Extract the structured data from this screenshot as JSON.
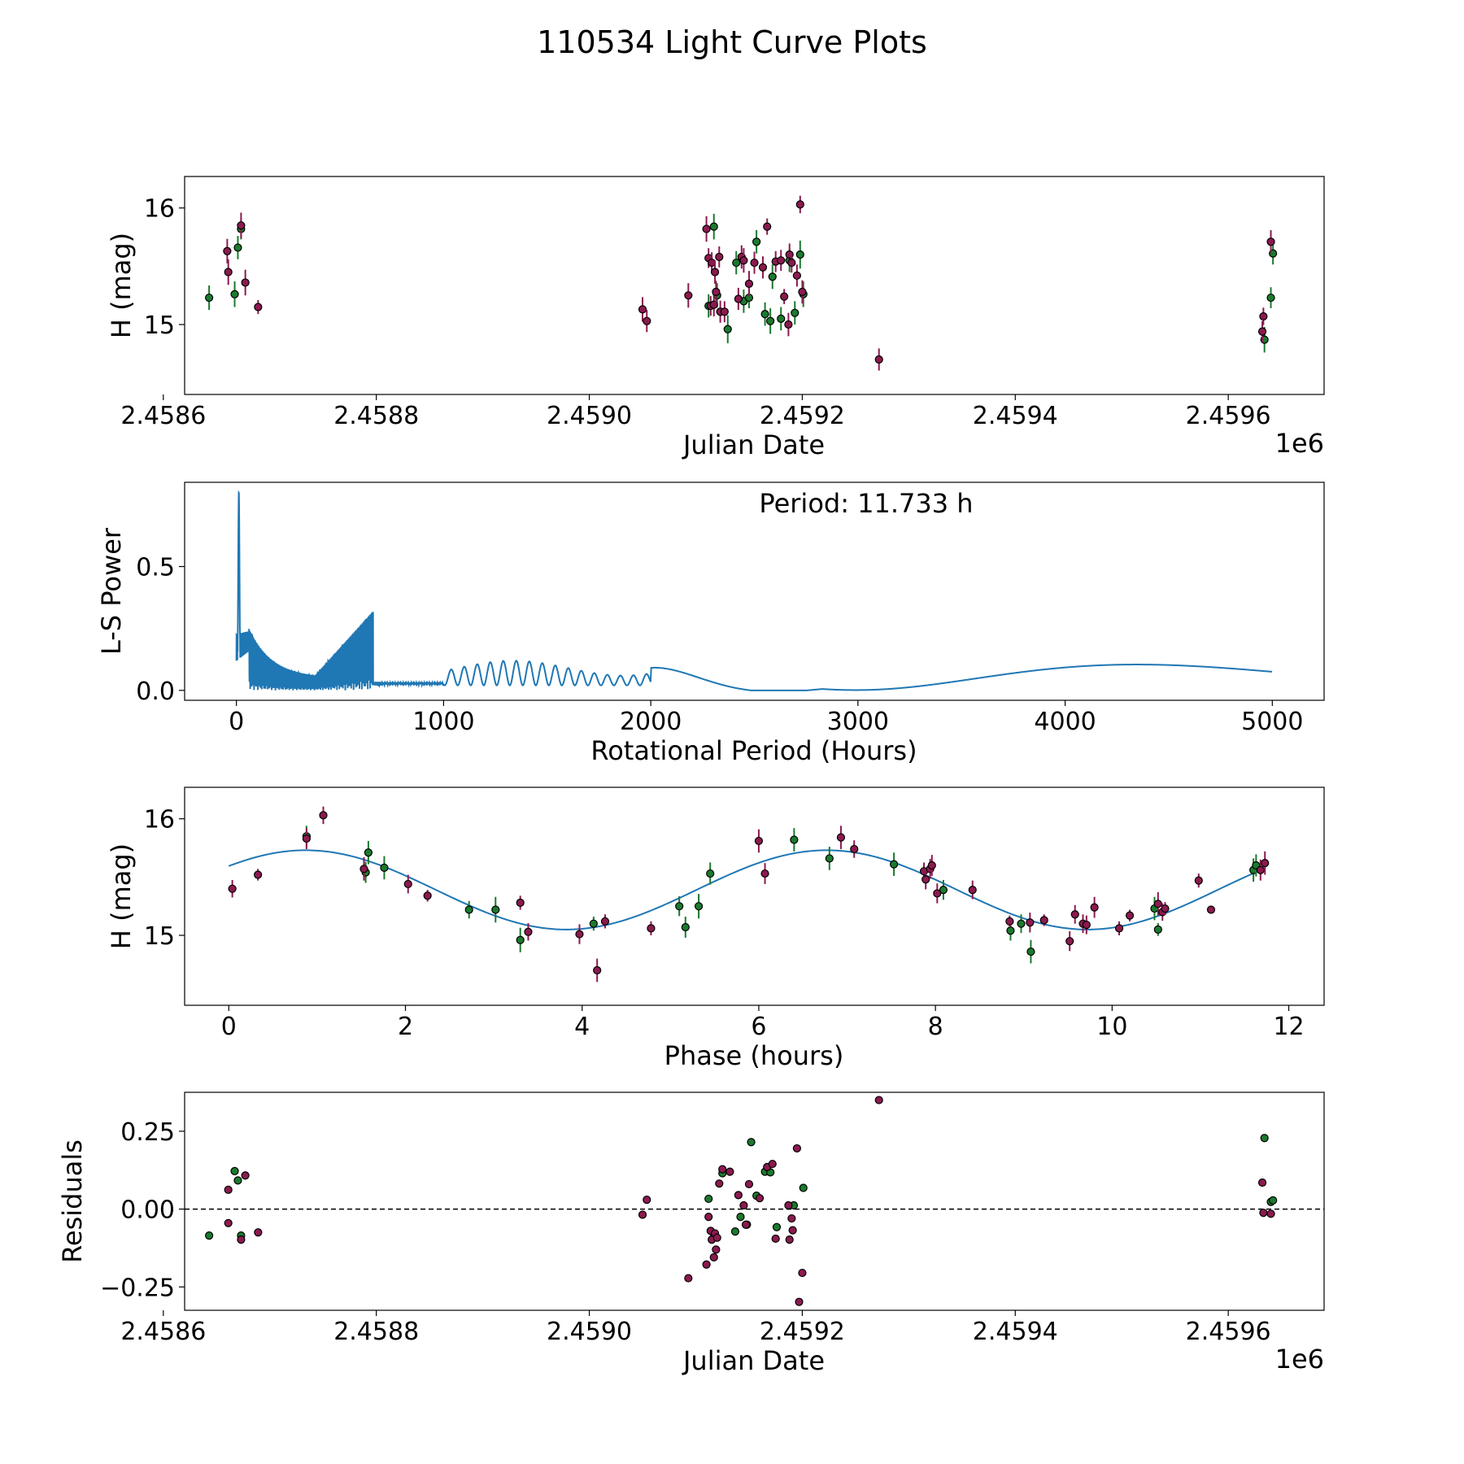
{
  "figure_title": "110534 Light Curve Plots",
  "colors": {
    "filter_g": "#1a7a2e",
    "filter_r": "#8b1a4f",
    "curve": "#1f77b4"
  },
  "chart_data": [
    {
      "type": "scatter",
      "name": "lightcurve-jd",
      "xlabel": "Julian Date",
      "ylabel": "H (mag)",
      "x_offset_label": "1e6",
      "xlim": [
        2.45862,
        2.45969
      ],
      "ylim": [
        14.4,
        16.27
      ],
      "xticks": [
        2.4586,
        2.4588,
        2.459,
        2.4592,
        2.4594,
        2.4596
      ],
      "xtick_labels": [
        "2.4586",
        "2.4588",
        "2.4590",
        "2.4592",
        "2.4594",
        "2.4596"
      ],
      "yticks": [
        15,
        16
      ],
      "ytick_labels": [
        "15",
        "16"
      ],
      "series": [
        {
          "name": "green",
          "color_key": "filter_g",
          "points": [
            [
              2.458643,
              15.23,
              0.21
            ],
            [
              2.458667,
              15.26,
              0.22
            ],
            [
              2.45867,
              15.66,
              0.2
            ],
            [
              2.458673,
              15.82,
              0.18
            ],
            [
              2.459112,
              15.16,
              0.2
            ],
            [
              2.459117,
              15.84,
              0.22
            ],
            [
              2.45912,
              15.25,
              0.21
            ],
            [
              2.45913,
              14.96,
              0.24
            ],
            [
              2.459138,
              15.53,
              0.2
            ],
            [
              2.459145,
              15.2,
              0.2
            ],
            [
              2.45915,
              15.23,
              0.18
            ],
            [
              2.459157,
              15.71,
              0.2
            ],
            [
              2.459165,
              15.09,
              0.2
            ],
            [
              2.45917,
              15.03,
              0.22
            ],
            [
              2.459172,
              15.41,
              0.21
            ],
            [
              2.45918,
              15.05,
              0.2
            ],
            [
              2.459188,
              15.55,
              0.2
            ],
            [
              2.459193,
              15.1,
              0.2
            ],
            [
              2.459198,
              15.6,
              0.24
            ],
            [
              2.459201,
              15.26,
              0.22
            ],
            [
              2.459634,
              14.87,
              0.22
            ],
            [
              2.45964,
              15.23,
              0.18
            ],
            [
              2.459642,
              15.61,
              0.19
            ]
          ]
        },
        {
          "name": "maroon",
          "color_key": "filter_r",
          "points": [
            [
              2.45866,
              15.63,
              0.21
            ],
            [
              2.458661,
              15.45,
              0.22
            ],
            [
              2.458673,
              15.85,
              0.22
            ],
            [
              2.458677,
              15.36,
              0.22
            ],
            [
              2.458689,
              15.15,
              0.12
            ],
            [
              2.45905,
              15.13,
              0.21
            ],
            [
              2.459054,
              15.03,
              0.19
            ],
            [
              2.459093,
              15.25,
              0.21
            ],
            [
              2.45911,
              15.82,
              0.22
            ],
            [
              2.459112,
              15.57,
              0.17
            ],
            [
              2.459114,
              15.16,
              0.17
            ],
            [
              2.459115,
              15.53,
              0.18
            ],
            [
              2.459117,
              15.17,
              0.2
            ],
            [
              2.459118,
              15.45,
              0.2
            ],
            [
              2.459119,
              15.28,
              0.19
            ],
            [
              2.459122,
              15.58,
              0.18
            ],
            [
              2.459123,
              15.11,
              0.19
            ],
            [
              2.459127,
              15.11,
              0.18
            ],
            [
              2.45914,
              15.22,
              0.19
            ],
            [
              2.459143,
              15.58,
              0.2
            ],
            [
              2.459145,
              15.55,
              0.21
            ],
            [
              2.45915,
              15.35,
              0.22
            ],
            [
              2.459155,
              15.53,
              0.19
            ],
            [
              2.459163,
              15.49,
              0.19
            ],
            [
              2.459167,
              15.84,
              0.14
            ],
            [
              2.459175,
              15.54,
              0.18
            ],
            [
              2.45918,
              15.55,
              0.18
            ],
            [
              2.459183,
              15.24,
              0.13
            ],
            [
              2.459187,
              15.0,
              0.2
            ],
            [
              2.459188,
              15.6,
              0.19
            ],
            [
              2.45919,
              15.53,
              0.17
            ],
            [
              2.459195,
              15.42,
              0.19
            ],
            [
              2.459198,
              16.03,
              0.15
            ],
            [
              2.4592,
              15.28,
              0.2
            ],
            [
              2.459272,
              14.7,
              0.19
            ],
            [
              2.459633,
              15.07,
              0.15
            ],
            [
              2.459632,
              14.94,
              0.18
            ],
            [
              2.45964,
              15.71,
              0.2
            ]
          ]
        }
      ]
    },
    {
      "type": "line",
      "name": "periodogram",
      "xlabel": "Rotational Period (Hours)",
      "ylabel": "L-S Power",
      "annotation": "Period: 11.733 h",
      "xlim": [
        -250,
        5250
      ],
      "ylim": [
        -0.04,
        0.84
      ],
      "xticks": [
        0,
        1000,
        2000,
        3000,
        4000,
        5000
      ],
      "xtick_labels": [
        "0",
        "1000",
        "2000",
        "3000",
        "4000",
        "5000"
      ],
      "yticks": [
        0.0,
        0.5
      ],
      "ytick_labels": [
        "0.0",
        "0.5"
      ],
      "peak": {
        "period": 11.733,
        "power": 0.8
      },
      "x_range": [
        0,
        5000
      ],
      "color_key": "curve"
    },
    {
      "type": "scatter",
      "name": "phase-folded",
      "xlabel": "Phase (hours)",
      "ylabel": "H (mag)",
      "xlim": [
        -0.5,
        12.4
      ],
      "ylim": [
        14.4,
        16.27
      ],
      "xticks": [
        0,
        2,
        4,
        6,
        8,
        10,
        12
      ],
      "xtick_labels": [
        "0",
        "2",
        "4",
        "6",
        "8",
        "10",
        "12"
      ],
      "yticks": [
        15,
        16
      ],
      "ytick_labels": [
        "15",
        "16"
      ],
      "model": {
        "mean": 15.39,
        "amplitude": 0.34,
        "period": 5.9,
        "peak_phase": 0.87
      },
      "series": [
        {
          "name": "green",
          "color_key": "filter_g",
          "points": [
            [
              0.88,
              15.85,
              0.18
            ],
            [
              1.55,
              15.54,
              0.18
            ],
            [
              1.58,
              15.71,
              0.2
            ],
            [
              1.76,
              15.58,
              0.2
            ],
            [
              2.72,
              15.22,
              0.15
            ],
            [
              3.02,
              15.22,
              0.22
            ],
            [
              3.3,
              14.96,
              0.21
            ],
            [
              4.13,
              15.1,
              0.12
            ],
            [
              5.1,
              15.25,
              0.17
            ],
            [
              5.17,
              15.07,
              0.18
            ],
            [
              5.32,
              15.25,
              0.21
            ],
            [
              5.45,
              15.53,
              0.19
            ],
            [
              6.4,
              15.82,
              0.2
            ],
            [
              6.8,
              15.66,
              0.2
            ],
            [
              7.53,
              15.61,
              0.2
            ],
            [
              8.09,
              15.39,
              0.17
            ],
            [
              8.85,
              15.04,
              0.17
            ],
            [
              8.97,
              15.1,
              0.16
            ],
            [
              9.08,
              14.86,
              0.2
            ],
            [
              10.48,
              15.23,
              0.2
            ],
            [
              10.52,
              15.05,
              0.11
            ],
            [
              11.6,
              15.56,
              0.2
            ],
            [
              11.63,
              15.6,
              0.19
            ]
          ]
        },
        {
          "name": "maroon",
          "color_key": "filter_r",
          "points": [
            [
              0.04,
              15.4,
              0.15
            ],
            [
              0.33,
              15.52,
              0.1
            ],
            [
              0.88,
              15.83,
              0.18
            ],
            [
              1.07,
              16.03,
              0.15
            ],
            [
              1.53,
              15.57,
              0.2
            ],
            [
              2.03,
              15.44,
              0.16
            ],
            [
              2.25,
              15.34,
              0.1
            ],
            [
              3.3,
              15.28,
              0.12
            ],
            [
              3.39,
              15.03,
              0.15
            ],
            [
              3.97,
              15.01,
              0.17
            ],
            [
              4.17,
              14.7,
              0.2
            ],
            [
              4.26,
              15.12,
              0.12
            ],
            [
              4.78,
              15.06,
              0.12
            ],
            [
              6.0,
              15.81,
              0.2
            ],
            [
              6.07,
              15.53,
              0.18
            ],
            [
              6.93,
              15.84,
              0.2
            ],
            [
              7.08,
              15.74,
              0.15
            ],
            [
              7.87,
              15.55,
              0.15
            ],
            [
              7.89,
              15.48,
              0.17
            ],
            [
              7.94,
              15.57,
              0.17
            ],
            [
              7.96,
              15.6,
              0.18
            ],
            [
              8.02,
              15.36,
              0.17
            ],
            [
              8.42,
              15.39,
              0.16
            ],
            [
              8.84,
              15.12,
              0.1
            ],
            [
              9.07,
              15.11,
              0.17
            ],
            [
              9.23,
              15.13,
              0.1
            ],
            [
              9.52,
              14.95,
              0.17
            ],
            [
              9.58,
              15.18,
              0.16
            ],
            [
              9.67,
              15.1,
              0.16
            ],
            [
              9.71,
              15.09,
              0.16
            ],
            [
              9.8,
              15.24,
              0.18
            ],
            [
              10.08,
              15.06,
              0.12
            ],
            [
              10.2,
              15.17,
              0.1
            ],
            [
              10.52,
              15.27,
              0.2
            ],
            [
              10.57,
              15.2,
              0.15
            ],
            [
              10.6,
              15.23,
              0.11
            ],
            [
              10.98,
              15.47,
              0.12
            ],
            [
              11.12,
              15.22,
              0.05
            ],
            [
              11.68,
              15.56,
              0.18
            ],
            [
              11.73,
              15.62,
              0.2
            ]
          ]
        }
      ]
    },
    {
      "type": "scatter",
      "name": "residuals",
      "xlabel": "Julian Date",
      "ylabel": "Residuals",
      "x_offset_label": "1e6",
      "xlim": [
        2.45862,
        2.45969
      ],
      "ylim": [
        -0.325,
        0.375
      ],
      "xticks": [
        2.4586,
        2.4588,
        2.459,
        2.4592,
        2.4594,
        2.4596
      ],
      "xtick_labels": [
        "2.4586",
        "2.4588",
        "2.4590",
        "2.4592",
        "2.4594",
        "2.4596"
      ],
      "yticks": [
        -0.25,
        0.0,
        0.25
      ],
      "ytick_labels": [
        "−0.25",
        "0.00",
        "0.25"
      ],
      "zero_line": 0.0,
      "series": [
        {
          "name": "green",
          "color_key": "filter_g",
          "points": [
            [
              2.458643,
              -0.085
            ],
            [
              2.458667,
              0.122
            ],
            [
              2.45867,
              0.092
            ],
            [
              2.458673,
              -0.085
            ],
            [
              2.459112,
              0.033
            ],
            [
              2.459117,
              -0.09
            ],
            [
              2.459125,
              0.115
            ],
            [
              2.459137,
              -0.072
            ],
            [
              2.459142,
              -0.025
            ],
            [
              2.459148,
              -0.05
            ],
            [
              2.459152,
              0.215
            ],
            [
              2.459157,
              0.043
            ],
            [
              2.459165,
              0.12
            ],
            [
              2.45917,
              0.118
            ],
            [
              2.459176,
              -0.058
            ],
            [
              2.459192,
              0.012
            ],
            [
              2.459201,
              0.068
            ],
            [
              2.459634,
              0.228
            ],
            [
              2.45964,
              0.023
            ],
            [
              2.459642,
              0.028
            ]
          ]
        },
        {
          "name": "maroon",
          "color_key": "filter_r",
          "points": [
            [
              2.458661,
              0.062
            ],
            [
              2.458661,
              -0.045
            ],
            [
              2.458673,
              -0.098
            ],
            [
              2.458677,
              0.108
            ],
            [
              2.458689,
              -0.075
            ],
            [
              2.45905,
              -0.018
            ],
            [
              2.459054,
              0.03
            ],
            [
              2.459093,
              -0.222
            ],
            [
              2.45911,
              -0.178
            ],
            [
              2.459112,
              -0.025
            ],
            [
              2.459114,
              -0.07
            ],
            [
              2.459115,
              -0.098
            ],
            [
              2.459117,
              -0.155
            ],
            [
              2.459118,
              -0.078
            ],
            [
              2.459119,
              -0.13
            ],
            [
              2.45912,
              -0.092
            ],
            [
              2.459122,
              0.082
            ],
            [
              2.459125,
              0.128
            ],
            [
              2.459132,
              0.12
            ],
            [
              2.45914,
              0.045
            ],
            [
              2.459145,
              0.012
            ],
            [
              2.459147,
              -0.05
            ],
            [
              2.45915,
              0.08
            ],
            [
              2.45916,
              0.035
            ],
            [
              2.459167,
              0.135
            ],
            [
              2.459172,
              0.145
            ],
            [
              2.459175,
              -0.095
            ],
            [
              2.459187,
              0.012
            ],
            [
              2.459188,
              -0.098
            ],
            [
              2.45919,
              -0.03
            ],
            [
              2.459191,
              -0.068
            ],
            [
              2.459195,
              0.195
            ],
            [
              2.459197,
              -0.298
            ],
            [
              2.4592,
              -0.205
            ],
            [
              2.459272,
              0.35
            ],
            [
              2.459632,
              0.085
            ],
            [
              2.459633,
              -0.012
            ],
            [
              2.45964,
              -0.015
            ]
          ]
        }
      ]
    }
  ]
}
